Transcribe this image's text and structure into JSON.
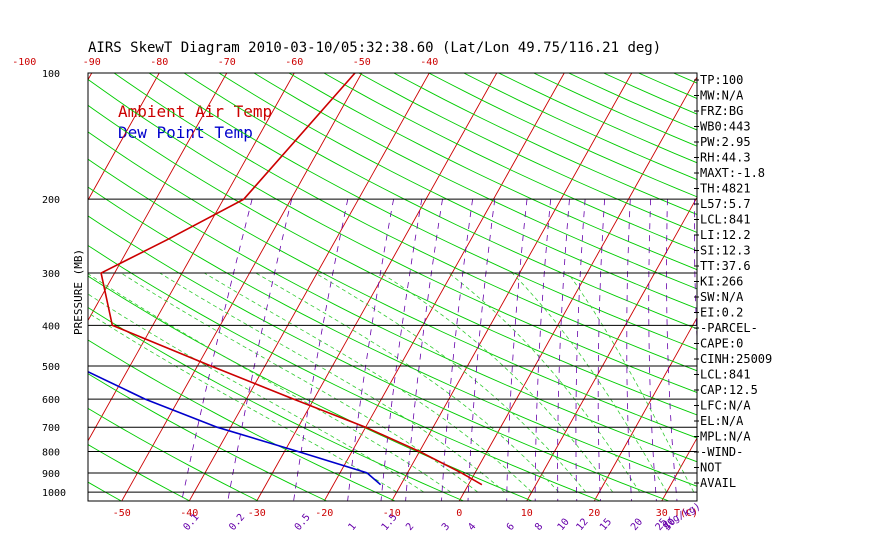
{
  "title": "AIRS SkewT Diagram 2010-03-10/05:32:38.60 (Lat/Lon 49.75/116.21 deg)",
  "legend": {
    "ambient": "Ambient Air Temp",
    "dew": "Dew Point Temp"
  },
  "colors": {
    "ambient": "#cc0000",
    "dew": "#0000cc",
    "isotherm": "#cc0000",
    "dry_adiabat": "#00cc00",
    "moist_adiabat": "#33cc33",
    "mixing_ratio": "#6600aa",
    "frame": "#000000"
  },
  "chart_data": {
    "type": "skewt",
    "ylabel": "PRESSURE (MB)",
    "pressure_levels": [
      100,
      200,
      300,
      400,
      500,
      600,
      700,
      800,
      900,
      1000
    ],
    "pressure_grid": [
      100,
      200,
      300,
      400,
      500,
      600,
      700,
      800,
      900,
      1000
    ],
    "pressure_range": [
      100,
      1050
    ],
    "top_temp_ticks": [
      "-120",
      "-110",
      "-100",
      "-90",
      "-80",
      "-70",
      "-60",
      "-50",
      "-40"
    ],
    "bottom_temp_ticks": [
      "-50",
      "-40",
      "-30",
      "-20",
      "-10",
      "0",
      "10",
      "20",
      "30"
    ],
    "bottom_temp_unit": "T(C)",
    "mixing_ratio_ticks": [
      "0.1",
      "0.2",
      "0.5",
      "1",
      "1.5",
      "2",
      "3",
      "4",
      "6",
      "8",
      "10",
      "12",
      "15",
      "20",
      "25",
      "30",
      "40"
    ],
    "mixing_ratio_unit": "q(g/kg)",
    "series": [
      {
        "name": "Ambient Air Temp",
        "points": [
          [
            80,
            -47.5
          ],
          [
            100,
            -51
          ],
          [
            200,
            -57
          ],
          [
            250,
            -65
          ],
          [
            300,
            -72
          ],
          [
            400,
            -66
          ],
          [
            500,
            -48
          ],
          [
            600,
            -33
          ],
          [
            700,
            -20
          ],
          [
            800,
            -10
          ],
          [
            900,
            -2
          ],
          [
            960,
            2
          ]
        ]
      },
      {
        "name": "Dew Point Temp",
        "points": [
          [
            80,
            -98
          ],
          [
            100,
            -100
          ],
          [
            150,
            -106
          ],
          [
            200,
            -110
          ],
          [
            250,
            -107
          ],
          [
            300,
            -96
          ],
          [
            400,
            -78
          ],
          [
            500,
            -68
          ],
          [
            600,
            -55
          ],
          [
            700,
            -42
          ],
          [
            800,
            -28
          ],
          [
            900,
            -16
          ],
          [
            960,
            -13
          ]
        ]
      }
    ]
  },
  "stats": [
    "TP:100",
    "MW:N/A",
    "FRZ:BG",
    "WB0:443",
    "PW:2.95",
    "RH:44.3",
    "MAXT:-1.8",
    "TH:4821",
    "L57:5.7",
    "LCL:841",
    "LI:12.2",
    "SI:12.3",
    "TT:37.6",
    "KI:266",
    "SW:N/A",
    "EI:0.2",
    "-PARCEL-",
    "CAPE:0",
    "CINH:25009",
    "LCL:841",
    "CAP:12.5",
    "LFC:N/A",
    "EL:N/A",
    "MPL:N/A",
    "-WIND-",
    "NOT",
    "AVAIL"
  ]
}
